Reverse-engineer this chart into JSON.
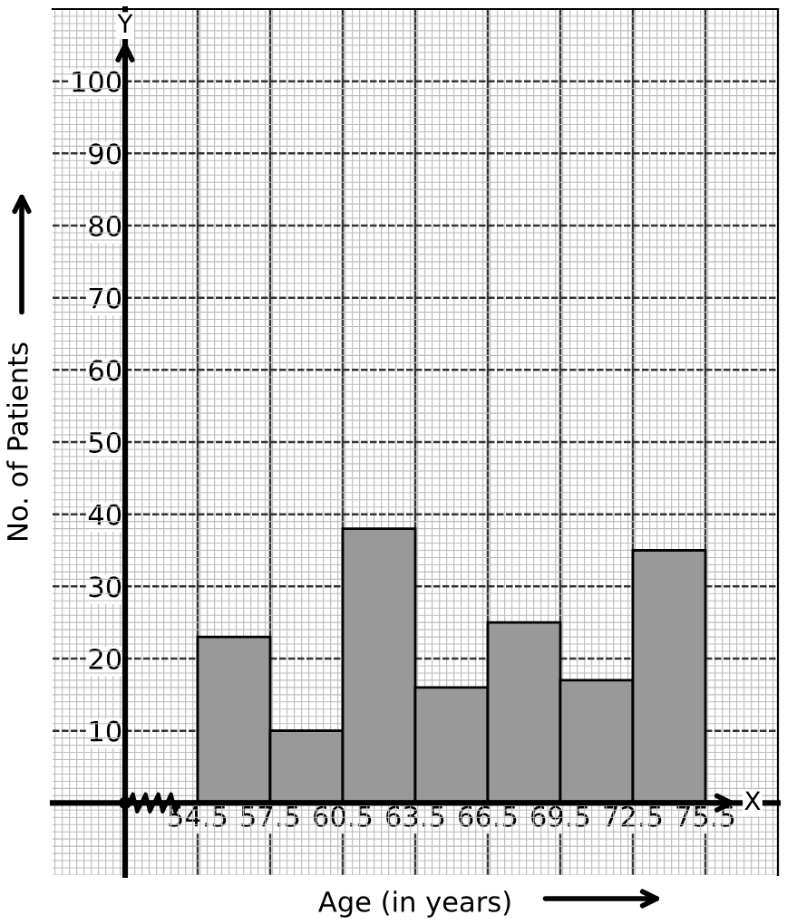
{
  "chart_data": {
    "type": "histogram",
    "xlabel": "Age (in years)",
    "ylabel": "No. of Patients",
    "bins": [
      54.5,
      57.5,
      60.5,
      63.5,
      66.5,
      69.5,
      72.5,
      75.5
    ],
    "values": [
      23,
      10,
      38,
      16,
      25,
      17,
      35
    ],
    "color": "#999999",
    "xlim": [
      48.5,
      78.5
    ],
    "ylim": [
      -10,
      110
    ],
    "xticks": [
      54.5,
      57.5,
      60.5,
      63.5,
      66.5,
      69.5,
      72.5,
      75.5
    ],
    "yticks": [
      10,
      20,
      30,
      40,
      50,
      60,
      70,
      80,
      90,
      100
    ],
    "annotations": [
      "Y",
      "X"
    ],
    "grid": true
  }
}
